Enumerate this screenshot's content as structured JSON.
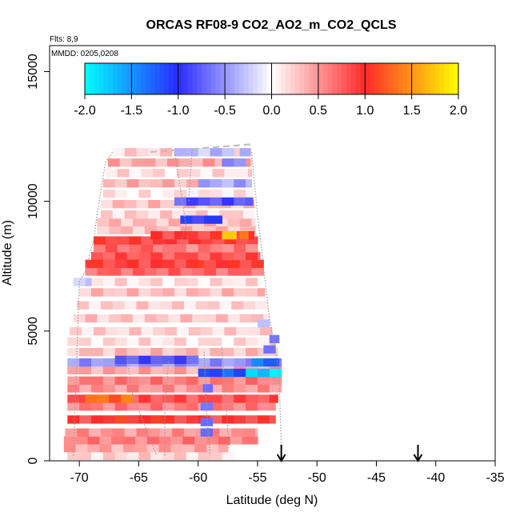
{
  "chart_data": {
    "type": "heatmap",
    "title": "ORCAS RF08-9 CO2_AO2_m_CO2_QCLS",
    "flights_label": "Flts: 8,9",
    "date_label": "MMDD: 0205,0208",
    "xlabel": "Latitude (deg N)",
    "ylabel": "Altitude (m)",
    "xlim": [
      -72.5,
      -35
    ],
    "ylim": [
      0,
      16000
    ],
    "x_ticks": [
      -70,
      -65,
      -60,
      -55,
      -50,
      -45,
      -40,
      -35
    ],
    "x_tick_labels": [
      "-70",
      "-65",
      "-60",
      "-55",
      "-50",
      "-45",
      "-40",
      "-35"
    ],
    "y_ticks": [
      0,
      5000,
      10000,
      15000
    ],
    "y_tick_labels": [
      "0",
      "5000",
      "10000",
      "15000"
    ],
    "colorbar": {
      "min": -2.0,
      "max": 2.0,
      "ticks": [
        -2.0,
        -1.5,
        -1.0,
        -0.5,
        0.0,
        0.5,
        1.0,
        1.5,
        2.0
      ],
      "tick_labels": [
        "-2.0",
        "-1.5",
        "-1.0",
        "-0.5",
        "0.0",
        "0.5",
        "1.0",
        "1.5",
        "2.0"
      ],
      "colors": [
        "#00ffff",
        "#2a2aff",
        "#ffffff",
        "#ff2a2a",
        "#ffff00"
      ]
    },
    "arrow_latitudes": [
      -53,
      -41.5
    ],
    "cell_height_m": 300,
    "rows": [
      {
        "alt": 200,
        "lat_min": -71.0,
        "lat_max": -57.0,
        "value": 0.2
      },
      {
        "alt": 500,
        "lat_min": -71.3,
        "lat_max": -57.5,
        "value": 0.4
      },
      {
        "alt": 800,
        "lat_min": -71.3,
        "lat_max": -55.0,
        "value": 0.6
      },
      {
        "alt": 1100,
        "lat_min": -71.2,
        "lat_max": -55.0,
        "value": 0.5
      },
      {
        "alt": 1600,
        "lat_min": -71.0,
        "lat_max": -53.5,
        "value": 0.9
      },
      {
        "alt": 2100,
        "lat_min": -71.0,
        "lat_max": -53.5,
        "value": 0.6
      },
      {
        "alt": 2400,
        "lat_min": -71.0,
        "lat_max": -53.3,
        "value": 0.8
      },
      {
        "alt": 2800,
        "lat_min": -71.0,
        "lat_max": -53.0,
        "value": 0.5
      },
      {
        "alt": 3100,
        "lat_min": -71.0,
        "lat_max": -53.0,
        "value": 0.6
      },
      {
        "alt": 3500,
        "lat_min": -71.0,
        "lat_max": -53.0,
        "value": 0.4
      },
      {
        "alt": 3800,
        "lat_min": -71.0,
        "lat_max": -53.0,
        "value": -0.5
      },
      {
        "alt": 4200,
        "lat_min": -71.0,
        "lat_max": -53.3,
        "value": 0.3
      },
      {
        "alt": 4600,
        "lat_min": -71.0,
        "lat_max": -53.5,
        "value": 0.15
      },
      {
        "alt": 5000,
        "lat_min": -70.8,
        "lat_max": -53.8,
        "value": 0.2
      },
      {
        "alt": 5500,
        "lat_min": -70.5,
        "lat_max": -54.0,
        "value": 0.25
      },
      {
        "alt": 6000,
        "lat_min": -70.2,
        "lat_max": -54.2,
        "value": 0.2
      },
      {
        "alt": 6500,
        "lat_min": -70.0,
        "lat_max": -54.4,
        "value": 0.3
      },
      {
        "alt": 6900,
        "lat_min": -70.0,
        "lat_max": -54.5,
        "value": 0.15
      },
      {
        "alt": 7300,
        "lat_min": -69.5,
        "lat_max": -54.5,
        "value": 0.7
      },
      {
        "alt": 7600,
        "lat_min": -69.5,
        "lat_max": -54.5,
        "value": 0.95
      },
      {
        "alt": 7900,
        "lat_min": -69.0,
        "lat_max": -54.8,
        "value": 0.8
      },
      {
        "alt": 8200,
        "lat_min": -68.8,
        "lat_max": -55.0,
        "value": 0.7
      },
      {
        "alt": 8500,
        "lat_min": -68.8,
        "lat_max": -55.0,
        "value": 0.9
      },
      {
        "alt": 8900,
        "lat_min": -68.5,
        "lat_max": -55.2,
        "value": 0.3
      },
      {
        "alt": 9200,
        "lat_min": -68.5,
        "lat_max": -55.2,
        "value": 0.3
      },
      {
        "alt": 9500,
        "lat_min": -68.2,
        "lat_max": -55.3,
        "value": 0.2
      },
      {
        "alt": 9900,
        "lat_min": -68.2,
        "lat_max": -55.3,
        "value": 0.3
      },
      {
        "alt": 10300,
        "lat_min": -68.0,
        "lat_max": -55.4,
        "value": 0.1
      },
      {
        "alt": 10700,
        "lat_min": -68.0,
        "lat_max": -55.5,
        "value": 0.35
      },
      {
        "alt": 11100,
        "lat_min": -67.8,
        "lat_max": -55.5,
        "value": 0.15
      },
      {
        "alt": 11500,
        "lat_min": -67.6,
        "lat_max": -55.5,
        "value": 0.4
      },
      {
        "alt": 11900,
        "lat_min": -67.2,
        "lat_max": -55.6,
        "value": 0.2
      }
    ],
    "patches": [
      {
        "lat_min": -64.0,
        "lat_max": -55.3,
        "alt": 8700,
        "value": 0.9
      },
      {
        "lat_min": -58.0,
        "lat_max": -56.8,
        "alt": 8700,
        "value": 1.7
      },
      {
        "lat_min": -56.5,
        "lat_max": -55.8,
        "alt": 8700,
        "value": 1.3
      },
      {
        "lat_min": -61.5,
        "lat_max": -58.0,
        "alt": 9300,
        "value": -1.0
      },
      {
        "lat_min": -62.0,
        "lat_max": -55.4,
        "alt": 10000,
        "value": -0.8
      },
      {
        "lat_min": -60.0,
        "lat_max": -55.5,
        "alt": 10700,
        "value": -0.4
      },
      {
        "lat_min": -58.0,
        "lat_max": -56.0,
        "alt": 11500,
        "value": -0.6
      },
      {
        "lat_min": -56.5,
        "lat_max": -55.6,
        "alt": 11900,
        "value": -0.5
      },
      {
        "lat_min": -62.0,
        "lat_max": -57.0,
        "alt": 11900,
        "value": -0.3
      },
      {
        "lat_min": -60.0,
        "lat_max": -53.2,
        "alt": 3400,
        "value": -1.2
      },
      {
        "lat_min": -56.0,
        "lat_max": -53.0,
        "alt": 3400,
        "value": -1.8
      },
      {
        "lat_min": -55.5,
        "lat_max": -53.2,
        "alt": 3800,
        "value": -1.3
      },
      {
        "lat_min": -67.0,
        "lat_max": -60.0,
        "alt": 3900,
        "value": -0.8
      },
      {
        "lat_min": -59.8,
        "lat_max": -58.8,
        "alt": 1500,
        "value": -0.6
      },
      {
        "lat_min": -59.8,
        "lat_max": -58.8,
        "alt": 1100,
        "value": -0.7
      },
      {
        "lat_min": -59.8,
        "lat_max": -58.8,
        "alt": 2100,
        "value": -0.5
      },
      {
        "lat_min": -59.6,
        "lat_max": -58.8,
        "alt": 2800,
        "value": -0.8
      },
      {
        "lat_min": -54.5,
        "lat_max": -53.5,
        "alt": 4300,
        "value": -0.7
      },
      {
        "lat_min": -54.0,
        "lat_max": -53.2,
        "alt": 4700,
        "value": -0.5
      },
      {
        "lat_min": -55.0,
        "lat_max": -54.0,
        "alt": 5300,
        "value": -0.3
      },
      {
        "lat_min": -70.5,
        "lat_max": -69.0,
        "alt": 6900,
        "value": -0.3
      },
      {
        "lat_min": -69.5,
        "lat_max": -65.5,
        "alt": 2400,
        "value": 1.3
      },
      {
        "lat_min": -67.0,
        "lat_max": -63.0,
        "alt": 1600,
        "value": 1.0
      },
      {
        "lat_min": -69.0,
        "lat_max": -60.0,
        "alt": 7600,
        "value": 0.9
      },
      {
        "lat_min": -63.0,
        "lat_max": -55.0,
        "alt": 8200,
        "value": 0.6
      }
    ],
    "flight_tracks": [
      {
        "style": "dotted",
        "color": "#999999",
        "points": [
          [
            -70.5,
            200
          ],
          [
            -70.0,
            6900
          ],
          [
            -69.5,
            7300
          ],
          [
            -68.8,
            8500
          ],
          [
            -68.5,
            9500
          ],
          [
            -67.8,
            11500
          ],
          [
            -67.2,
            11900
          ]
        ]
      },
      {
        "style": "dotted",
        "color": "#999999",
        "points": [
          [
            -66.0,
            4000
          ],
          [
            -65.5,
            2500
          ],
          [
            -64.0,
            800
          ],
          [
            -63.5,
            200
          ]
        ]
      },
      {
        "style": "dotted",
        "color": "#999999",
        "points": [
          [
            -62.5,
            3800
          ],
          [
            -62.8,
            2000
          ],
          [
            -62.8,
            200
          ]
        ]
      },
      {
        "style": "dotted",
        "color": "#999999",
        "points": [
          [
            -62.0,
            12000
          ],
          [
            -61.5,
            10500
          ],
          [
            -61.0,
            9000
          ],
          [
            -61.5,
            8500
          ]
        ]
      },
      {
        "style": "dotted",
        "color": "#999999",
        "points": [
          [
            -59.5,
            4200
          ],
          [
            -59.3,
            2000
          ],
          [
            -59.0,
            200
          ]
        ]
      },
      {
        "style": "dotted",
        "color": "#999999",
        "points": [
          [
            -58.0,
            4400
          ],
          [
            -57.6,
            1800
          ],
          [
            -57.4,
            500
          ]
        ]
      },
      {
        "style": "dotted",
        "color": "#999999",
        "points": [
          [
            -55.5,
            11900
          ],
          [
            -55.0,
            9500
          ],
          [
            -54.5,
            7500
          ],
          [
            -54.0,
            5500
          ],
          [
            -53.2,
            3500
          ],
          [
            -53.0,
            500
          ]
        ]
      },
      {
        "style": "dotted",
        "color": "#999999",
        "points": [
          [
            -60.5,
            12000
          ],
          [
            -60.8,
            10000
          ]
        ]
      },
      {
        "style": "dashed",
        "color": "#bbbbbb",
        "points": [
          [
            -64.0,
            11900
          ],
          [
            -61.0,
            12000
          ],
          [
            -55.5,
            12200
          ]
        ]
      }
    ]
  }
}
